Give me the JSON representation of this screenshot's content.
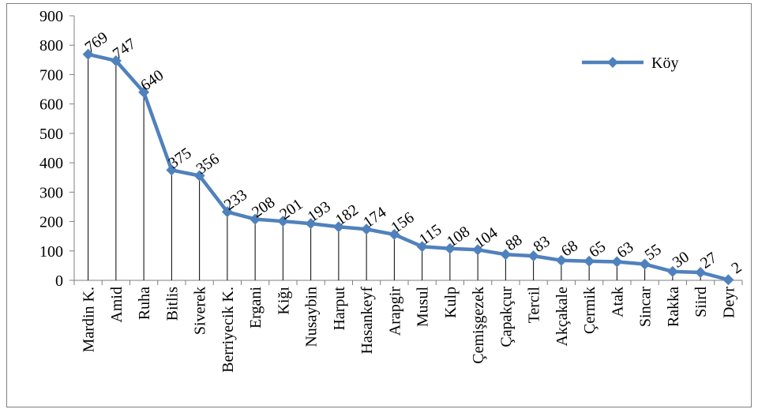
{
  "chart_data": {
    "type": "line",
    "categories": [
      "Mardin K.",
      "Amid",
      "Ruha",
      "Bitlis",
      "Siverek",
      "Berriyecik K.",
      "Ergani",
      "Kiğı",
      "Nusaybin",
      "Harput",
      "Hasankeyf",
      "Arapgir",
      "Musul",
      "Kulp",
      "Çemişgezek",
      "Çapakçur",
      "Tercil",
      "Akçakale",
      "Çermik",
      "Atak",
      "Sincar",
      "Rakka",
      "Siird",
      "Deyr"
    ],
    "series": [
      {
        "name": "Köy",
        "values": [
          769,
          747,
          640,
          375,
          356,
          233,
          208,
          201,
          193,
          182,
          174,
          156,
          115,
          108,
          104,
          88,
          83,
          68,
          65,
          63,
          55,
          30,
          27,
          2
        ]
      }
    ],
    "ylim": [
      0,
      900
    ],
    "yticks": [
      0,
      100,
      200,
      300,
      400,
      500,
      600,
      700,
      800,
      900
    ],
    "legend_position": "top-right",
    "drop_lines": true,
    "data_labels": true,
    "colors": {
      "series": "#4f81bd",
      "drop_line": "#000000",
      "axis": "#7f7f7f"
    }
  }
}
